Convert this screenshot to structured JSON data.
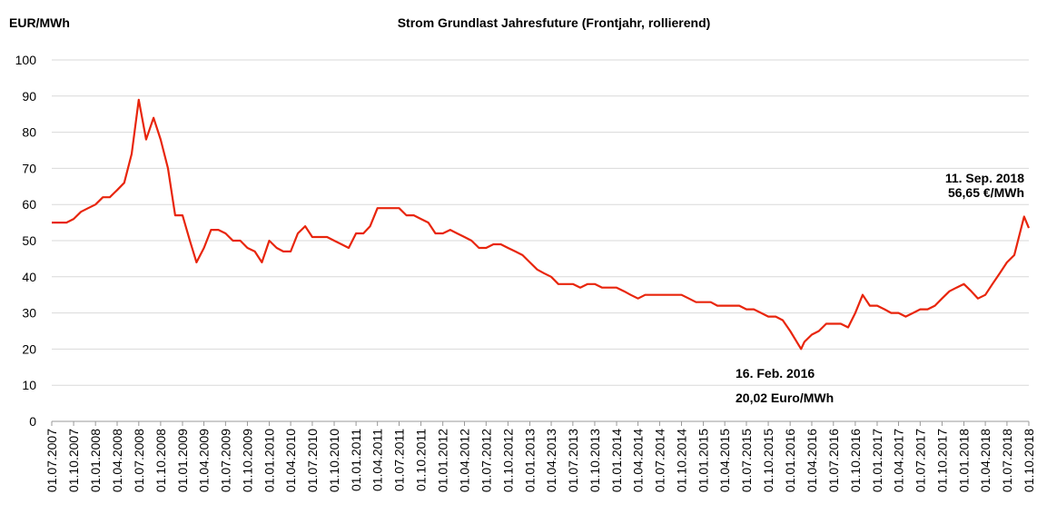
{
  "chart_data": {
    "type": "line",
    "title": "Strom Grundlast Jahresfuture (Frontjahr, rollierend)",
    "y_label": "EUR/MWh",
    "annotations": [
      "16. Feb. 2016",
      "20,02 Euro/MWh",
      "11. Sep. 2018",
      "56,65 €/MWh"
    ],
    "color": "#e8250c",
    "grid": true,
    "ylim": [
      0,
      100
    ],
    "yticks": [
      0,
      10,
      20,
      30,
      40,
      50,
      60,
      70,
      80,
      90,
      100
    ],
    "xlim": [
      "01.07.2007",
      "01.10.2018"
    ],
    "xticks": [
      "01.07.2007",
      "01.10.2007",
      "01.01.2008",
      "01.04.2008",
      "01.07.2008",
      "01.10.2008",
      "01.01.2009",
      "01.04.2009",
      "01.07.2009",
      "01.10.2009",
      "01.01.2010",
      "01.04.2010",
      "01.07.2010",
      "01.10.2010",
      "01.01.2011",
      "01.04.2011",
      "01.07.2011",
      "01.10.2011",
      "01.01.2012",
      "01.04.2012",
      "01.07.2012",
      "01.10.2012",
      "01.01.2013",
      "01.04.2013",
      "01.07.2013",
      "01.10.2013",
      "01.01.2014",
      "01.04.2014",
      "01.07.2014",
      "01.10.2014",
      "01.01.2015",
      "01.04.2015",
      "01.07.2015",
      "01.10.2015",
      "01.01.2016",
      "01.04.2016",
      "01.07.2016",
      "01.10.2016",
      "01.01.2017",
      "01.04.2017",
      "01.07.2017",
      "01.10.2017",
      "01.01.2018",
      "01.04.2018",
      "01.07.2018",
      "01.10.2018"
    ],
    "x": [
      "01.07.2007",
      "01.08.2007",
      "01.09.2007",
      "01.10.2007",
      "01.11.2007",
      "01.12.2007",
      "01.01.2008",
      "01.02.2008",
      "01.03.2008",
      "01.04.2008",
      "01.05.2008",
      "01.06.2008",
      "01.07.2008",
      "01.08.2008",
      "01.09.2008",
      "01.10.2008",
      "01.11.2008",
      "01.12.2008",
      "01.01.2009",
      "01.02.2009",
      "01.03.2009",
      "01.04.2009",
      "01.05.2009",
      "01.06.2009",
      "01.07.2009",
      "01.08.2009",
      "01.09.2009",
      "01.10.2009",
      "01.11.2009",
      "01.12.2009",
      "01.01.2010",
      "01.02.2010",
      "01.03.2010",
      "01.04.2010",
      "01.05.2010",
      "01.06.2010",
      "01.07.2010",
      "01.08.2010",
      "01.09.2010",
      "01.10.2010",
      "01.11.2010",
      "01.12.2010",
      "01.01.2011",
      "01.02.2011",
      "01.03.2011",
      "01.04.2011",
      "01.05.2011",
      "01.06.2011",
      "01.07.2011",
      "01.08.2011",
      "01.09.2011",
      "01.10.2011",
      "01.11.2011",
      "01.12.2011",
      "01.01.2012",
      "01.02.2012",
      "01.03.2012",
      "01.04.2012",
      "01.05.2012",
      "01.06.2012",
      "01.07.2012",
      "01.08.2012",
      "01.09.2012",
      "01.10.2012",
      "01.11.2012",
      "01.12.2012",
      "01.01.2013",
      "01.02.2013",
      "01.03.2013",
      "01.04.2013",
      "01.05.2013",
      "01.06.2013",
      "01.07.2013",
      "01.08.2013",
      "01.09.2013",
      "01.10.2013",
      "01.11.2013",
      "01.12.2013",
      "01.01.2014",
      "01.02.2014",
      "01.03.2014",
      "01.04.2014",
      "01.05.2014",
      "01.06.2014",
      "01.07.2014",
      "01.08.2014",
      "01.09.2014",
      "01.10.2014",
      "01.11.2014",
      "01.12.2014",
      "01.01.2015",
      "01.02.2015",
      "01.03.2015",
      "01.04.2015",
      "01.05.2015",
      "01.06.2015",
      "01.07.2015",
      "01.08.2015",
      "01.09.2015",
      "01.10.2015",
      "01.11.2015",
      "01.12.2015",
      "01.01.2016",
      "16.02.2016",
      "01.03.2016",
      "01.04.2016",
      "01.05.2016",
      "01.06.2016",
      "01.07.2016",
      "01.08.2016",
      "01.09.2016",
      "01.10.2016",
      "01.11.2016",
      "01.12.2016",
      "01.01.2017",
      "01.02.2017",
      "01.03.2017",
      "01.04.2017",
      "01.05.2017",
      "01.06.2017",
      "01.07.2017",
      "01.08.2017",
      "01.09.2017",
      "01.10.2017",
      "01.11.2017",
      "01.12.2017",
      "01.01.2018",
      "01.02.2018",
      "01.03.2018",
      "01.04.2018",
      "01.05.2018",
      "01.06.2018",
      "01.07.2018",
      "01.08.2018",
      "11.09.2018",
      "01.10.2018"
    ],
    "values": [
      55,
      55,
      55,
      56,
      58,
      59,
      60,
      62,
      62,
      64,
      66,
      74,
      89,
      78,
      84,
      78,
      70,
      57,
      57,
      50,
      44,
      48,
      53,
      53,
      52,
      50,
      50,
      48,
      47,
      44,
      50,
      48,
      47,
      47,
      52,
      54,
      51,
      51,
      51,
      50,
      49,
      48,
      52,
      52,
      54,
      59,
      59,
      59,
      59,
      57,
      57,
      56,
      55,
      52,
      52,
      53,
      52,
      51,
      50,
      48,
      48,
      49,
      49,
      48,
      47,
      46,
      44,
      42,
      41,
      40,
      38,
      38,
      38,
      37,
      38,
      38,
      37,
      37,
      37,
      36,
      35,
      34,
      35,
      35,
      35,
      35,
      35,
      35,
      34,
      33,
      33,
      33,
      32,
      32,
      32,
      32,
      31,
      31,
      30,
      29,
      29,
      28,
      25,
      20.02,
      22,
      24,
      25,
      27,
      27,
      27,
      26,
      30,
      35,
      32,
      32,
      31,
      30,
      30,
      29,
      30,
      31,
      31,
      32,
      34,
      36,
      37,
      38,
      36,
      34,
      35,
      38,
      41,
      44,
      46,
      56.65,
      53.5
    ]
  }
}
